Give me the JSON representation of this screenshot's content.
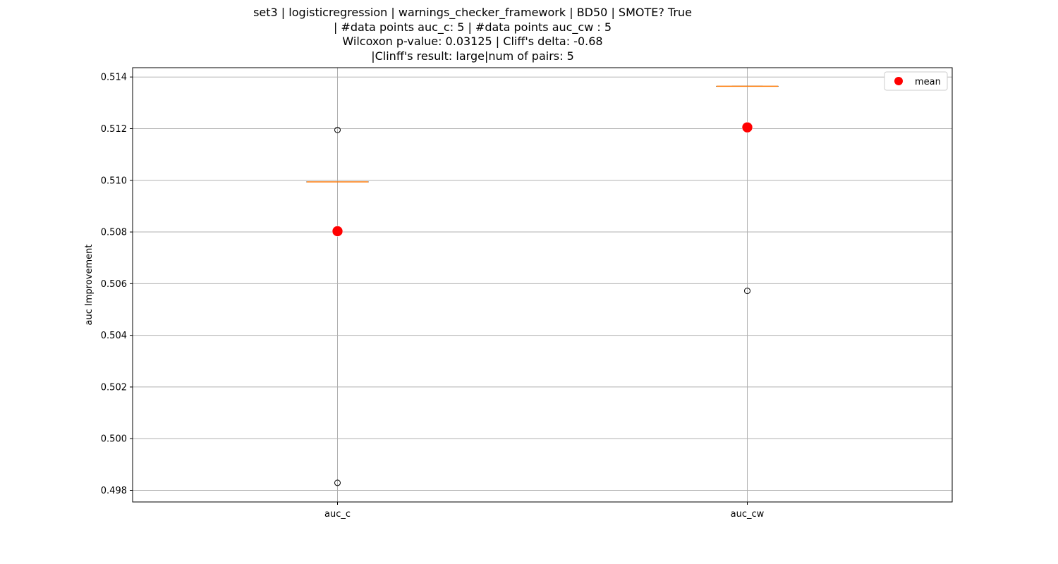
{
  "title_lines": [
    "set3 | logisticregression | warnings_checker_framework | BD50 | SMOTE? True",
    "| #data points auc_c: 5 | #data points auc_cw : 5",
    "Wilcoxon p-value: 0.03125 | Cliff's delta: -0.68",
    "|Clinff's result: large|num of pairs: 5"
  ],
  "chart_data": {
    "type": "box",
    "title": "set3 | logisticregression | warnings_checker_framework | BD50 | SMOTE? True\n| #data points auc_c: 5 | #data points auc_cw : 5\nWilcoxon p-value: 0.03125 | Cliff's delta: -0.68\n|Clinff's result: large|num of pairs: 5",
    "xlabel": "",
    "ylabel": "auc Improvement",
    "categories": [
      "auc_c",
      "auc_cw"
    ],
    "ylim": [
      0.49755,
      0.51436
    ],
    "yticks": [
      0.498,
      0.5,
      0.502,
      0.504,
      0.506,
      0.508,
      0.51,
      0.512,
      0.514
    ],
    "ytick_labels": [
      "0.498",
      "0.500",
      "0.502",
      "0.504",
      "0.506",
      "0.508",
      "0.510",
      "0.512",
      "0.514"
    ],
    "grid": true,
    "legend": {
      "position": "top-right",
      "entries": [
        "mean"
      ]
    },
    "boxes": [
      {
        "name": "auc_c",
        "median": 0.50994,
        "q1": 0.50994,
        "q3": 0.50994,
        "whisker_low": 0.50994,
        "whisker_high": 0.50994,
        "fliers": [
          0.51195,
          0.49829
        ],
        "mean": 0.50803
      },
      {
        "name": "auc_cw",
        "median": 0.51364,
        "q1": 0.51364,
        "q3": 0.51364,
        "whisker_low": 0.51364,
        "whisker_high": 0.51364,
        "fliers": [
          0.50572
        ],
        "mean": 0.51205
      }
    ],
    "colors": {
      "median": "#ff7f0e",
      "box": "#000000",
      "mean": "#ff0000",
      "grid": "#b0b0b0"
    }
  }
}
